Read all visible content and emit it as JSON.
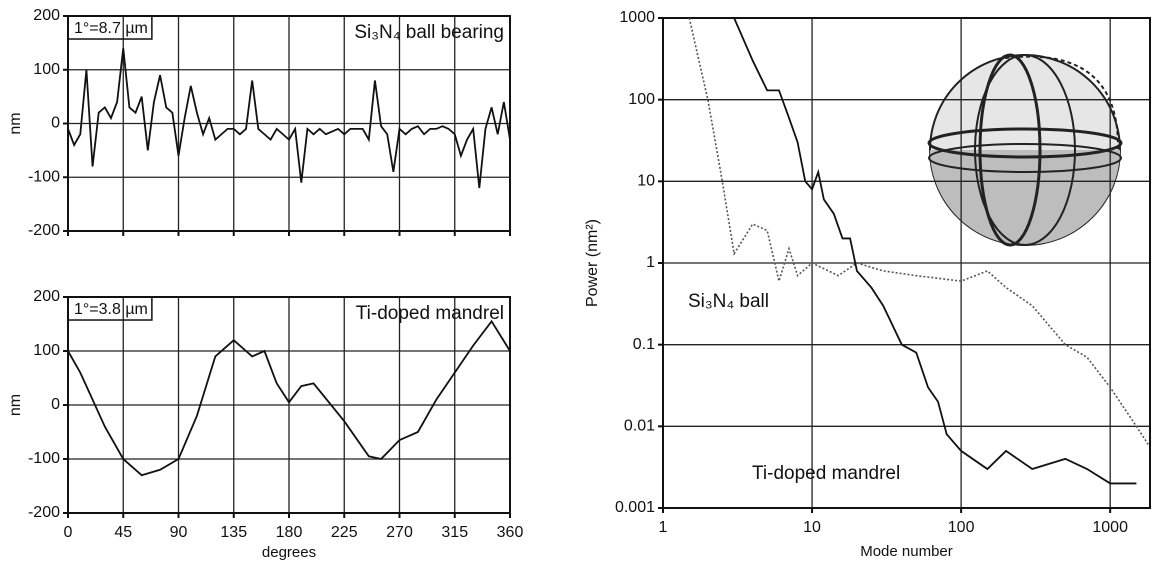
{
  "chart_data": [
    {
      "type": "line",
      "annotations": [
        "1°=8.7 µm",
        "Si₃N₄ ball bearing"
      ],
      "ylabel": "nm",
      "xlim": [
        0,
        360
      ],
      "xticks": [
        0,
        45,
        90,
        135,
        180,
        225,
        270,
        315,
        360
      ],
      "xtick_labels": false,
      "ylim": [
        -200,
        200
      ],
      "yticks": [
        -200,
        -100,
        0,
        100,
        200
      ],
      "grid": true,
      "x": [
        0,
        5,
        10,
        15,
        20,
        25,
        30,
        35,
        40,
        45,
        50,
        55,
        60,
        65,
        70,
        75,
        80,
        85,
        90,
        95,
        100,
        105,
        110,
        115,
        120,
        125,
        130,
        135,
        140,
        145,
        150,
        155,
        160,
        165,
        170,
        175,
        180,
        185,
        190,
        195,
        200,
        205,
        210,
        215,
        220,
        225,
        230,
        235,
        240,
        245,
        250,
        255,
        260,
        265,
        270,
        275,
        280,
        285,
        290,
        295,
        300,
        305,
        310,
        315,
        320,
        325,
        330,
        335,
        340,
        345,
        350,
        355,
        360
      ],
      "series": [
        {
          "color": "#111111",
          "dash": false,
          "values": [
            -10,
            -40,
            -20,
            100,
            -80,
            20,
            30,
            10,
            40,
            140,
            30,
            20,
            50,
            -50,
            40,
            90,
            30,
            20,
            -60,
            10,
            70,
            20,
            -20,
            10,
            -30,
            -20,
            -10,
            -10,
            -20,
            -10,
            80,
            -10,
            -20,
            -30,
            -10,
            -20,
            -30,
            -10,
            -110,
            -10,
            -20,
            -10,
            -20,
            -15,
            -10,
            -20,
            -10,
            -10,
            -10,
            -30,
            80,
            -5,
            -20,
            -90,
            -10,
            -20,
            -10,
            -5,
            -20,
            -10,
            -10,
            -5,
            -10,
            -20,
            -60,
            -30,
            -10,
            -120,
            -10,
            30,
            -20,
            40,
            -30
          ]
        }
      ]
    },
    {
      "type": "line",
      "annotations": [
        "1°=3.8 µm",
        "Ti-doped mandrel"
      ],
      "ylabel": "nm",
      "xlabel": "degrees",
      "xlim": [
        0,
        360
      ],
      "xticks": [
        0,
        45,
        90,
        135,
        180,
        225,
        270,
        315,
        360
      ],
      "xtick_labels": true,
      "ylim": [
        -200,
        200
      ],
      "yticks": [
        -200,
        -100,
        0,
        100,
        200
      ],
      "grid": true,
      "x": [
        0,
        10,
        20,
        30,
        45,
        60,
        75,
        90,
        105,
        120,
        135,
        150,
        160,
        170,
        180,
        190,
        200,
        225,
        245,
        255,
        270,
        285,
        300,
        315,
        330,
        345,
        360
      ],
      "series": [
        {
          "color": "#111111",
          "dash": false,
          "values": [
            100,
            60,
            10,
            -40,
            -100,
            -130,
            -120,
            -100,
            -20,
            90,
            120,
            90,
            100,
            40,
            5,
            35,
            40,
            -30,
            -95,
            -100,
            -65,
            -50,
            10,
            60,
            110,
            155,
            100
          ]
        }
      ]
    },
    {
      "type": "line",
      "xscale": "log",
      "yscale": "log",
      "xlabel": "Mode number",
      "ylabel": "Power (nm²)",
      "xlim": [
        1,
        1850
      ],
      "xticks": [
        1,
        10,
        100,
        1000
      ],
      "xtick_labels": true,
      "ylim": [
        0.001,
        1000
      ],
      "yticks": [
        0.001,
        0.01,
        0.1,
        1,
        10,
        100,
        1000
      ],
      "grid": true,
      "series": [
        {
          "name": "Si₃N₄ ball",
          "color": "#555555",
          "dash": true,
          "x": [
            1.5,
            2,
            2.5,
            3,
            4,
            5,
            6,
            7,
            8,
            10,
            15,
            20,
            30,
            50,
            100,
            150,
            200,
            300,
            500,
            700,
            1000,
            1500,
            1800
          ],
          "values": [
            1000,
            100,
            10,
            1.3,
            3,
            2.5,
            0.6,
            1.5,
            0.7,
            1,
            0.7,
            1,
            0.8,
            0.7,
            0.6,
            0.8,
            0.5,
            0.3,
            0.1,
            0.07,
            0.03,
            0.01,
            0.006
          ]
        },
        {
          "name": "Ti-doped mandrel",
          "color": "#111111",
          "dash": false,
          "x": [
            3,
            4,
            5,
            6,
            7,
            8,
            9,
            10,
            11,
            12,
            14,
            16,
            18,
            20,
            25,
            30,
            40,
            50,
            60,
            70,
            80,
            100,
            150,
            200,
            300,
            500,
            700,
            1000,
            1500
          ],
          "values": [
            1000,
            300,
            130,
            130,
            60,
            30,
            10,
            8,
            13,
            6,
            4,
            2,
            2,
            0.8,
            0.5,
            0.3,
            0.1,
            0.08,
            0.03,
            0.02,
            0.008,
            0.005,
            0.003,
            0.005,
            0.003,
            0.004,
            0.003,
            0.002,
            0.002
          ]
        }
      ]
    }
  ]
}
